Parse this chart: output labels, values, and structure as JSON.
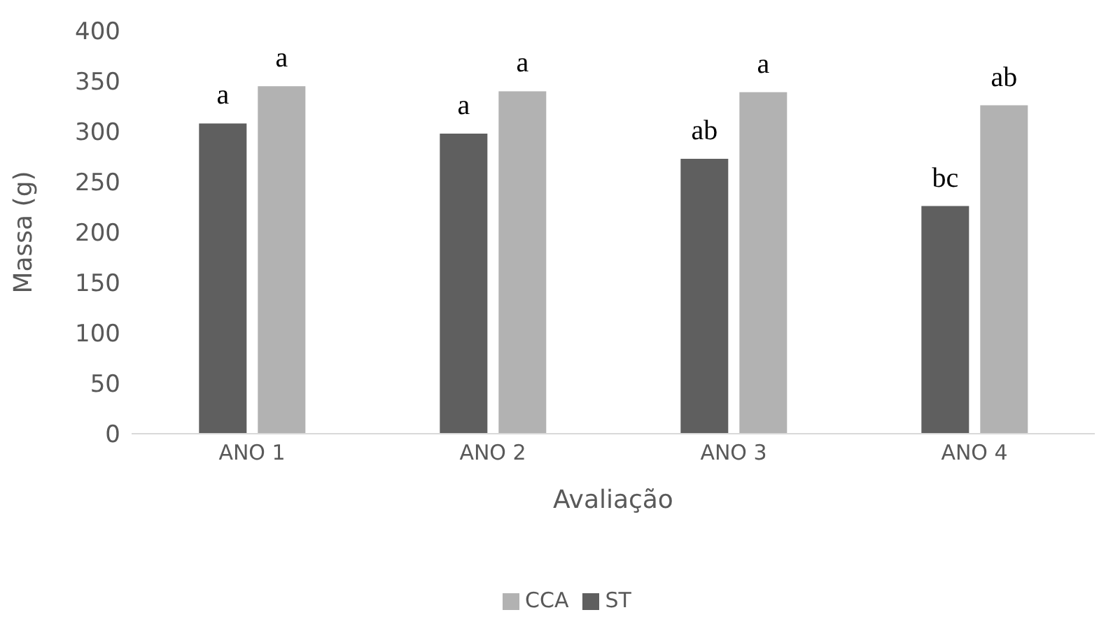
{
  "chart_data": {
    "type": "bar",
    "xlabel": "Avaliação",
    "ylabel": "Massa (g)",
    "categories": [
      "ANO 1",
      "ANO 2",
      "ANO 3",
      "ANO 4"
    ],
    "series": [
      {
        "name": "ST",
        "color": "#5f5f5f",
        "values": [
          308,
          298,
          273,
          226
        ],
        "value_labels": [
          "a",
          "a",
          "ab",
          "bc"
        ]
      },
      {
        "name": "CCA",
        "color": "#b2b2b2",
        "values": [
          345,
          340,
          339,
          326
        ],
        "value_labels": [
          "a",
          "a",
          "a",
          "ab"
        ]
      }
    ],
    "ylim": [
      0,
      400
    ],
    "yticks": [
      0,
      50,
      100,
      150,
      200,
      250,
      300,
      350,
      400
    ],
    "grid": false,
    "legend": "bottom"
  }
}
